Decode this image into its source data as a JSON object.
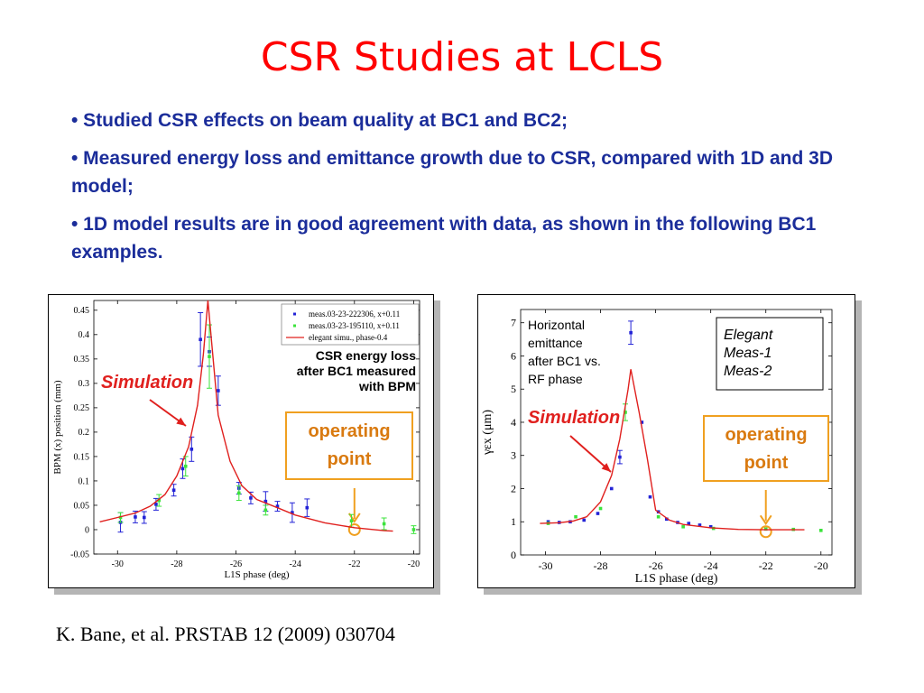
{
  "slide": {
    "title": "CSR Studies at LCLS",
    "bullets": [
      "• Studied CSR effects on beam quality at BC1 and BC2;",
      "• Measured energy loss and emittance growth due to CSR, compared with 1D and 3D model;",
      "• 1D model results are in good agreement with data, as shown in the following BC1 examples."
    ],
    "citation": "K. Bane, et al. PRSTAB 12 (2009) 030704"
  },
  "colors": {
    "title": "#ff0000",
    "bullet_text": "#1b2d9a",
    "simulation": "#e0201e",
    "meas_blue": "#2323d6",
    "meas_green": "#3be33b",
    "operating_box": "#f0a020",
    "operating_text": "#d97a10"
  },
  "chart_data": [
    {
      "type": "scatter",
      "xlabel": "L1S phase (deg)",
      "ylabel": "BPM (x) position (mm)",
      "xlim": [
        -30.8,
        -19.8
      ],
      "ylim": [
        -0.05,
        0.47
      ],
      "xticks": [
        "-30",
        "-28",
        "-26",
        "-24",
        "-22",
        "-20"
      ],
      "xtick_values": [
        -30,
        -28,
        -26,
        -24,
        -22,
        -20
      ],
      "yticks": [
        "-0.05",
        "0",
        "0.05",
        "0.1",
        "0.15",
        "0.2",
        "0.25",
        "0.3",
        "0.35",
        "0.4",
        "0.45"
      ],
      "ytick_values": [
        -0.05,
        0,
        0.05,
        0.1,
        0.15,
        0.2,
        0.25,
        0.3,
        0.35,
        0.4,
        0.45
      ],
      "legend_position": "top-right",
      "series": [
        {
          "name": "meas.03-23-222306, x+0.11",
          "kind": "points",
          "color": "#2323d6",
          "points": [
            {
              "x": -29.9,
              "y": 0.015,
              "err": 0.02
            },
            {
              "x": -29.4,
              "y": 0.026,
              "err": 0.012
            },
            {
              "x": -29.1,
              "y": 0.025,
              "err": 0.012
            },
            {
              "x": -28.7,
              "y": 0.052,
              "err": 0.012
            },
            {
              "x": -28.1,
              "y": 0.081,
              "err": 0.012
            },
            {
              "x": -27.8,
              "y": 0.125,
              "err": 0.02
            },
            {
              "x": -27.5,
              "y": 0.165,
              "err": 0.025
            },
            {
              "x": -27.2,
              "y": 0.39,
              "err": 0.055
            },
            {
              "x": -26.9,
              "y": 0.365,
              "err": 0.03
            },
            {
              "x": -26.6,
              "y": 0.285,
              "err": 0.03
            },
            {
              "x": -25.9,
              "y": 0.085,
              "err": 0.012
            },
            {
              "x": -25.5,
              "y": 0.065,
              "err": 0.012
            },
            {
              "x": -25.0,
              "y": 0.058,
              "err": 0.02
            },
            {
              "x": -24.6,
              "y": 0.048,
              "err": 0.01
            },
            {
              "x": -24.1,
              "y": 0.035,
              "err": 0.02
            },
            {
              "x": -23.6,
              "y": 0.045,
              "err": 0.018
            }
          ]
        },
        {
          "name": "meas.03-23-195110, x+0.11",
          "kind": "points",
          "color": "#3be33b",
          "points": [
            {
              "x": -29.9,
              "y": 0.025,
              "err": 0.01
            },
            {
              "x": -28.6,
              "y": 0.06,
              "err": 0.012
            },
            {
              "x": -27.7,
              "y": 0.13,
              "err": 0.02
            },
            {
              "x": -26.9,
              "y": 0.355,
              "err": 0.065
            },
            {
              "x": -25.9,
              "y": 0.075,
              "err": 0.015
            },
            {
              "x": -25.0,
              "y": 0.04,
              "err": 0.01
            },
            {
              "x": -22.1,
              "y": 0.018,
              "err": 0.013
            },
            {
              "x": -21.0,
              "y": 0.012,
              "err": 0.012
            },
            {
              "x": -20.0,
              "y": 0.0,
              "err": 0.008
            }
          ]
        },
        {
          "name": "elegant simu., phase-0.4",
          "kind": "line",
          "color": "#e0201e",
          "points": [
            {
              "x": -30.6,
              "y": 0.016
            },
            {
              "x": -30.0,
              "y": 0.025
            },
            {
              "x": -29.4,
              "y": 0.034
            },
            {
              "x": -28.9,
              "y": 0.048
            },
            {
              "x": -28.4,
              "y": 0.072
            },
            {
              "x": -28.0,
              "y": 0.11
            },
            {
              "x": -27.6,
              "y": 0.17
            },
            {
              "x": -27.3,
              "y": 0.255
            },
            {
              "x": -27.1,
              "y": 0.36
            },
            {
              "x": -26.95,
              "y": 0.47
            },
            {
              "x": -26.6,
              "y": 0.235
            },
            {
              "x": -26.2,
              "y": 0.14
            },
            {
              "x": -25.8,
              "y": 0.09
            },
            {
              "x": -25.3,
              "y": 0.062
            },
            {
              "x": -24.6,
              "y": 0.045
            },
            {
              "x": -24.0,
              "y": 0.03
            },
            {
              "x": -23.0,
              "y": 0.014
            },
            {
              "x": -22.0,
              "y": 0.004
            },
            {
              "x": -21.0,
              "y": -0.002
            },
            {
              "x": -20.7,
              "y": -0.003
            }
          ]
        }
      ],
      "annotations": {
        "simulation": "Simulation",
        "description": [
          "CSR energy loss",
          "after BC1 measured",
          "with BPM"
        ],
        "operating_point": [
          "operating",
          "point"
        ]
      },
      "operating_point": {
        "x": -22.0,
        "y": 0.0
      }
    },
    {
      "type": "scatter",
      "xlabel": "L1S phase (deg)",
      "ylabel": "γεx (μm)",
      "xlim": [
        -30.9,
        -19.6
      ],
      "ylim": [
        0,
        7.4
      ],
      "xticks": [
        "-30",
        "-28",
        "-26",
        "-24",
        "-22",
        "-20"
      ],
      "xtick_values": [
        -30,
        -28,
        -26,
        -24,
        -22,
        -20
      ],
      "yticks": [
        "0",
        "1",
        "2",
        "3",
        "4",
        "5",
        "6",
        "7"
      ],
      "ytick_values": [
        0,
        1,
        2,
        3,
        4,
        5,
        6,
        7
      ],
      "legend_position": "top-right",
      "legend": [
        "Elegant",
        "Meas-1",
        "Meas-2"
      ],
      "series": [
        {
          "name": "Meas-1",
          "kind": "points",
          "color": "#2323d6",
          "points": [
            {
              "x": -29.9,
              "y": 1.0,
              "err": 0
            },
            {
              "x": -29.5,
              "y": 0.98,
              "err": 0
            },
            {
              "x": -29.1,
              "y": 1.0,
              "err": 0
            },
            {
              "x": -28.6,
              "y": 1.05,
              "err": 0
            },
            {
              "x": -28.1,
              "y": 1.25,
              "err": 0
            },
            {
              "x": -27.6,
              "y": 2.0,
              "err": 0
            },
            {
              "x": -27.3,
              "y": 2.95,
              "err": 0.2
            },
            {
              "x": -26.9,
              "y": 6.7,
              "err": 0.35
            },
            {
              "x": -26.5,
              "y": 4.0,
              "err": 0
            },
            {
              "x": -26.2,
              "y": 1.75,
              "err": 0
            },
            {
              "x": -25.9,
              "y": 1.3,
              "err": 0
            },
            {
              "x": -25.6,
              "y": 1.08,
              "err": 0
            },
            {
              "x": -25.2,
              "y": 0.98,
              "err": 0
            },
            {
              "x": -24.8,
              "y": 0.95,
              "err": 0
            },
            {
              "x": -24.4,
              "y": 0.9,
              "err": 0
            },
            {
              "x": -24.0,
              "y": 0.85,
              "err": 0
            }
          ]
        },
        {
          "name": "Meas-2",
          "kind": "points",
          "color": "#3be33b",
          "points": [
            {
              "x": -29.9,
              "y": 0.95,
              "err": 0
            },
            {
              "x": -28.9,
              "y": 1.15,
              "err": 0
            },
            {
              "x": -28.0,
              "y": 1.4,
              "err": 0
            },
            {
              "x": -27.1,
              "y": 4.3,
              "err": 0.25
            },
            {
              "x": -25.9,
              "y": 1.15,
              "err": 0
            },
            {
              "x": -25.0,
              "y": 0.85,
              "err": 0
            },
            {
              "x": -23.9,
              "y": 0.8,
              "err": 0
            },
            {
              "x": -22.0,
              "y": 0.78,
              "err": 0
            },
            {
              "x": -21.0,
              "y": 0.77,
              "err": 0
            },
            {
              "x": -20.0,
              "y": 0.74,
              "err": 0
            }
          ]
        },
        {
          "name": "Elegant",
          "kind": "line",
          "color": "#e0201e",
          "points": [
            {
              "x": -30.2,
              "y": 0.95
            },
            {
              "x": -29.5,
              "y": 0.97
            },
            {
              "x": -29.0,
              "y": 1.02
            },
            {
              "x": -28.5,
              "y": 1.15
            },
            {
              "x": -28.0,
              "y": 1.6
            },
            {
              "x": -27.6,
              "y": 2.4
            },
            {
              "x": -27.3,
              "y": 3.5
            },
            {
              "x": -27.0,
              "y": 5.0
            },
            {
              "x": -26.9,
              "y": 5.6
            },
            {
              "x": -26.6,
              "y": 4.3
            },
            {
              "x": -26.3,
              "y": 2.9
            },
            {
              "x": -26.0,
              "y": 1.35
            },
            {
              "x": -25.5,
              "y": 1.05
            },
            {
              "x": -25.0,
              "y": 0.92
            },
            {
              "x": -24.0,
              "y": 0.82
            },
            {
              "x": -23.0,
              "y": 0.77
            },
            {
              "x": -22.0,
              "y": 0.76
            },
            {
              "x": -20.6,
              "y": 0.76
            }
          ]
        }
      ],
      "annotations": {
        "simulation": "Simulation",
        "description": [
          "Horizontal",
          "emittance",
          "after BC1 vs.",
          "RF phase"
        ],
        "operating_point": [
          "operating",
          "point"
        ]
      },
      "operating_point": {
        "x": -22.0,
        "y": 0.7
      }
    }
  ]
}
